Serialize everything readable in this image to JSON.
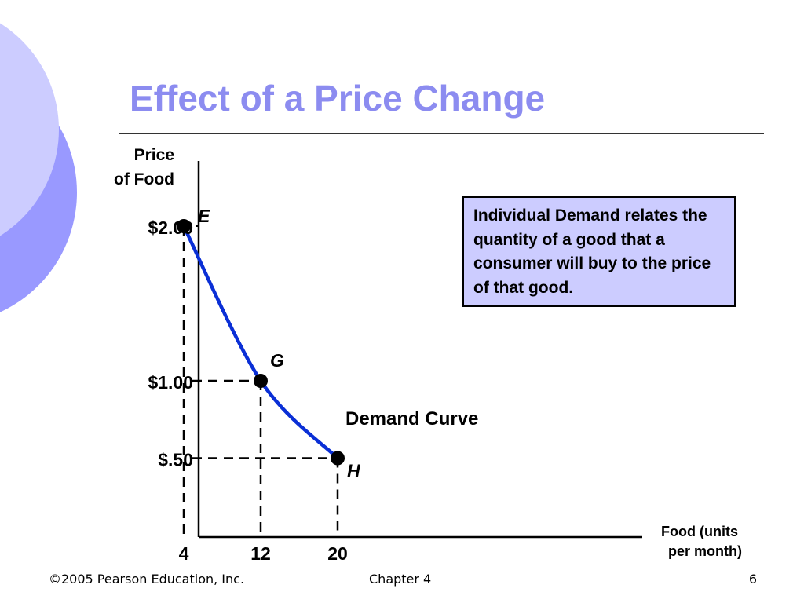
{
  "slide": {
    "title": "Effect of a Price Change",
    "footer_left": "©2005 Pearson Education, Inc.",
    "footer_center": "Chapter 4",
    "page_number": "6",
    "accent_color": "#8c8cf0",
    "box_color": "#ccccff",
    "curve_color": "#0a2fd6"
  },
  "infobox": {
    "text": "Individual Demand relates the quantity of a good that a consumer will buy to the price of that good."
  },
  "chart_data": {
    "type": "line",
    "ylabel_lines": [
      "Price",
      "of Food"
    ],
    "xlabel_lines": [
      "Food (units",
      "per month)"
    ],
    "x_ticks": [
      {
        "value": 4,
        "label": "4"
      },
      {
        "value": 12,
        "label": "12"
      },
      {
        "value": 20,
        "label": "20"
      }
    ],
    "y_ticks": [
      {
        "value": 2.0,
        "label": "$2.00"
      },
      {
        "value": 1.0,
        "label": "$1.00"
      },
      {
        "value": 0.5,
        "label": "$.50"
      }
    ],
    "series": [
      {
        "name": "Demand Curve",
        "points": [
          {
            "x": 4,
            "y": 2.0,
            "label": "E"
          },
          {
            "x": 12,
            "y": 1.0,
            "label": "G"
          },
          {
            "x": 20,
            "y": 0.5,
            "label": "H"
          }
        ]
      }
    ],
    "grid": false
  }
}
